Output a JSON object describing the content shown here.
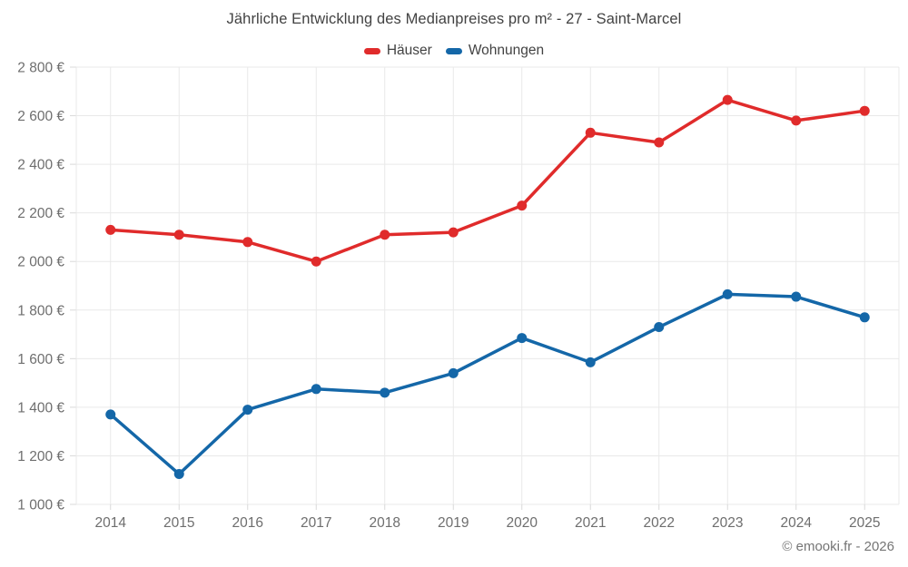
{
  "title": "Jährliche Entwicklung des Medianpreises pro m² - 27 - Saint-Marcel",
  "legend": {
    "items": [
      {
        "label": "Häuser",
        "color": "#e02b2b"
      },
      {
        "label": "Wohnungen",
        "color": "#1467a8"
      }
    ]
  },
  "footer": {
    "credit": "© emooki.fr - 2026"
  },
  "chart_data": {
    "type": "line",
    "title": "Jährliche Entwicklung des Medianpreises pro m² - 27 - Saint-Marcel",
    "categories": [
      "2014",
      "2015",
      "2016",
      "2017",
      "2018",
      "2019",
      "2020",
      "2021",
      "2022",
      "2023",
      "2024",
      "2025"
    ],
    "series": [
      {
        "name": "Häuser",
        "color": "#e02b2b",
        "values": [
          2130,
          2110,
          2080,
          2000,
          2110,
          2120,
          2230,
          2530,
          2490,
          2665,
          2580,
          2620
        ]
      },
      {
        "name": "Wohnungen",
        "color": "#1467a8",
        "values": [
          1370,
          1125,
          1390,
          1475,
          1460,
          1540,
          1685,
          1585,
          1730,
          1865,
          1855,
          1770
        ]
      }
    ],
    "xlabel": "",
    "ylabel": "",
    "ylim": [
      1000,
      2800
    ],
    "ytick_step": 200,
    "ytick_labels": [
      "1 000 €",
      "1 200 €",
      "1 400 €",
      "1 600 €",
      "1 800 €",
      "2 000 €",
      "2 200 €",
      "2 400 €",
      "2 600 €",
      "2 800 €"
    ],
    "grid": true,
    "legend_position": "top",
    "grid_color": "#e9e9e9",
    "tick_color": "#d9d9d9",
    "marker_radius": 5.5,
    "line_width": 3.5
  }
}
